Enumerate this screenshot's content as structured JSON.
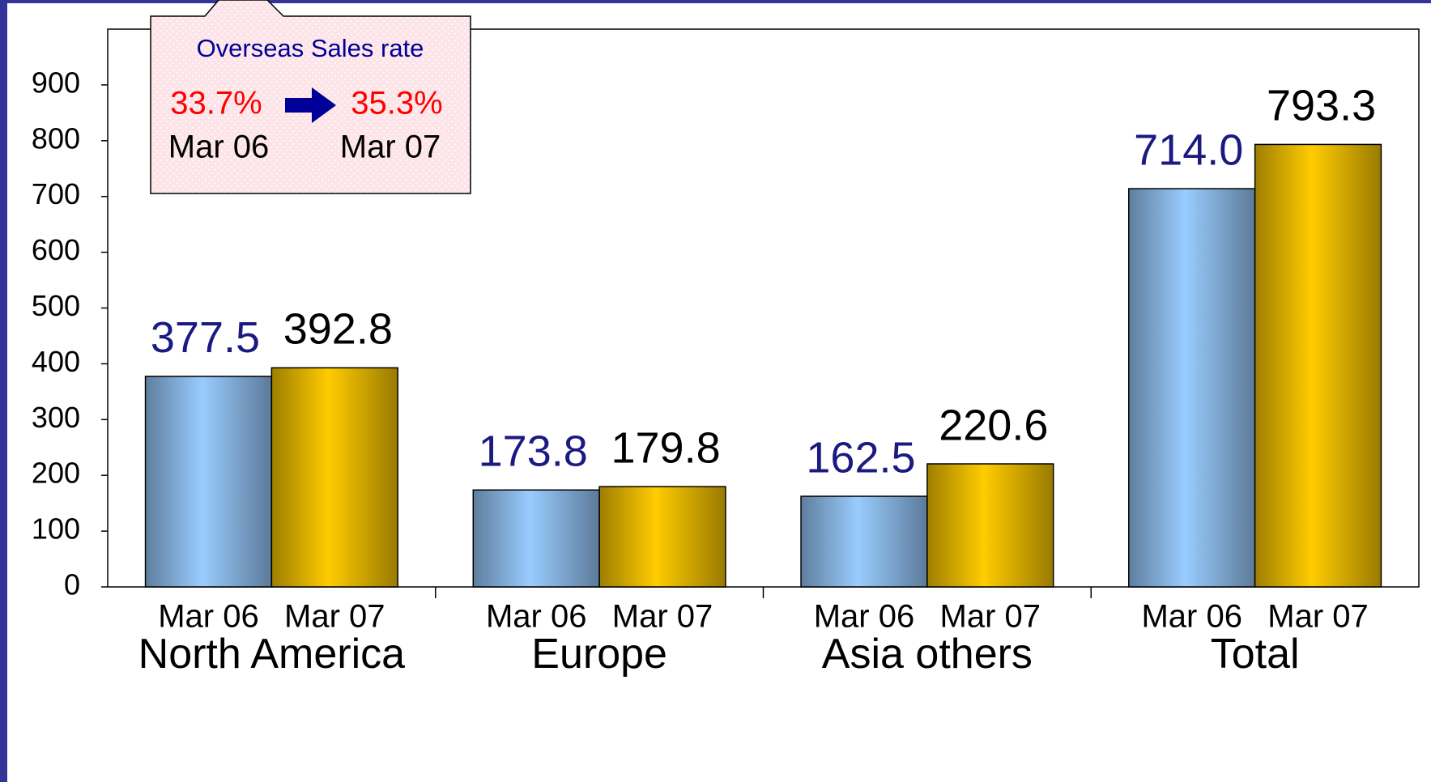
{
  "chart_data": {
    "type": "bar",
    "categories": [
      "North America",
      "Europe",
      "Asia others",
      "Total"
    ],
    "series": [
      {
        "name": "Mar 06",
        "color": "#99ccff",
        "values": [
          377.5,
          173.8,
          162.5,
          714
        ],
        "value_labels": [
          "377.5",
          "173.8",
          "162.5",
          "714.0"
        ]
      },
      {
        "name": "Mar 07",
        "color": "#ffcc00",
        "values": [
          392.8,
          179.8,
          220.6,
          793.3
        ],
        "value_labels": [
          "392.8",
          "179.8",
          "220.6",
          "793.3"
        ]
      }
    ],
    "ylim": [
      0,
      1000
    ],
    "yticks": [
      0,
      100,
      200,
      300,
      400,
      500,
      600,
      700,
      800,
      900
    ],
    "annotation": {
      "title": "Overseas Sales rate",
      "from_value": "33.7%",
      "to_value": "35.3%",
      "from_label": "Mar 06",
      "to_label": "Mar 07"
    }
  }
}
